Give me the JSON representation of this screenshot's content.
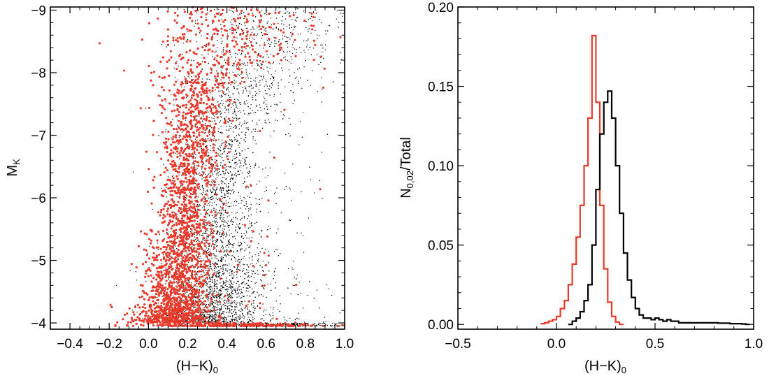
{
  "chart_data": [
    {
      "type": "scatter",
      "xlabel": "(H−K)",
      "xlabel_sub": "0",
      "ylabel": "M",
      "ylabel_sub": "K",
      "xlim": [
        -0.5,
        1.0
      ],
      "ylim": [
        -3.9,
        -9.05
      ],
      "y_inverted": true,
      "xticks": [
        -0.4,
        -0.2,
        0.0,
        0.2,
        0.4,
        0.6,
        0.8,
        1.0
      ],
      "xtick_labels": [
        "−0.4",
        "−0.2",
        "0.0",
        "0.2",
        "0.4",
        "0.6",
        "0.8",
        "1.0"
      ],
      "yticks": [
        -4,
        -5,
        -6,
        -7,
        -8,
        -9
      ],
      "ytick_labels": [
        "−4",
        "−5",
        "−6",
        "−7",
        "−8",
        "−9"
      ],
      "grid": false,
      "series": [
        {
          "color": "#000000",
          "marker": "small dot",
          "density_profile": [
            {
              "y": -4.0,
              "x_center": 0.3,
              "x_width": 0.14
            },
            {
              "y": -5.0,
              "x_center": 0.33,
              "x_width": 0.12
            },
            {
              "y": -6.0,
              "x_center": 0.34,
              "x_width": 0.11
            },
            {
              "y": -7.0,
              "x_center": 0.36,
              "x_width": 0.1
            },
            {
              "y": -7.5,
              "x_center": 0.4,
              "x_width": 0.14
            },
            {
              "y": -8.5,
              "x_center": 0.6,
              "x_width": 0.2
            }
          ]
        },
        {
          "color": "#e8392b",
          "marker": "dot",
          "density_profile": [
            {
              "y": -4.0,
              "x_center": 0.13,
              "x_width": 0.1
            },
            {
              "y": -5.0,
              "x_center": 0.16,
              "x_width": 0.08
            },
            {
              "y": -6.0,
              "x_center": 0.19,
              "x_width": 0.07
            },
            {
              "y": -7.0,
              "x_center": 0.22,
              "x_width": 0.08
            },
            {
              "y": -7.8,
              "x_center": 0.25,
              "x_width": 0.1
            },
            {
              "y": -8.6,
              "x_center": 0.4,
              "x_width": 0.22
            }
          ]
        }
      ]
    },
    {
      "type": "line",
      "style": "step",
      "xlabel": "(H−K)",
      "xlabel_sub": "0",
      "ylabel": "N",
      "ylabel_sub": "0,02",
      "ylabel_suffix": "/Total",
      "xlim": [
        -0.5,
        1.0
      ],
      "ylim": [
        -0.003,
        0.2
      ],
      "xticks": [
        -0.5,
        0.0,
        0.5,
        1.0
      ],
      "xtick_labels": [
        "−0.5",
        "0.0",
        "0.5",
        "1.0"
      ],
      "yticks": [
        0.0,
        0.05,
        0.1,
        0.15,
        0.2
      ],
      "ytick_labels": [
        "0.00",
        "0.05",
        "0.10",
        "0.15",
        "0.20"
      ],
      "bin_width": 0.02,
      "grid": false,
      "series": [
        {
          "color": "#e8392b",
          "x": [
            -0.08,
            -0.06,
            -0.04,
            -0.02,
            0.0,
            0.02,
            0.04,
            0.06,
            0.08,
            0.1,
            0.12,
            0.14,
            0.16,
            0.18,
            0.2,
            0.22,
            0.24,
            0.26,
            0.28,
            0.3,
            0.32
          ],
          "y": [
            0.0005,
            0.001,
            0.002,
            0.003,
            0.005,
            0.01,
            0.015,
            0.025,
            0.038,
            0.055,
            0.075,
            0.1,
            0.13,
            0.182,
            0.14,
            0.075,
            0.035,
            0.014,
            0.005,
            0.0015,
            0.0
          ]
        },
        {
          "color": "#000000",
          "x": [
            0.06,
            0.08,
            0.1,
            0.12,
            0.14,
            0.16,
            0.18,
            0.2,
            0.22,
            0.24,
            0.26,
            0.28,
            0.3,
            0.32,
            0.34,
            0.36,
            0.38,
            0.4,
            0.42,
            0.44,
            0.46,
            0.48,
            0.5,
            0.52,
            0.54,
            0.56,
            0.58,
            0.6,
            0.62,
            0.66,
            0.7,
            0.76,
            0.82,
            0.88,
            0.94,
            0.96
          ],
          "y": [
            0.0,
            0.002,
            0.004,
            0.008,
            0.015,
            0.025,
            0.05,
            0.085,
            0.12,
            0.14,
            0.147,
            0.13,
            0.1,
            0.07,
            0.045,
            0.028,
            0.017,
            0.01,
            0.006,
            0.004,
            0.004,
            0.003,
            0.004,
            0.003,
            0.002,
            0.003,
            0.002,
            0.002,
            0.001,
            0.001,
            0.001,
            0.001,
            0.0008,
            0.0005,
            0.0003,
            0.0
          ]
        }
      ]
    }
  ]
}
